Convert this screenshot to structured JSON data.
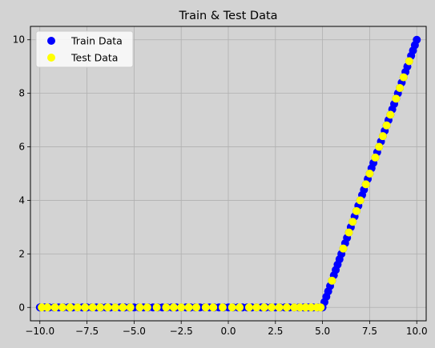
{
  "chart_data": {
    "type": "scatter",
    "title": "Train & Test Data",
    "xlabel": "",
    "ylabel": "",
    "xlim": [
      -10.5,
      10.5
    ],
    "ylim": [
      -0.5,
      10.5
    ],
    "xticks": [
      -10.0,
      -7.5,
      -5.0,
      -2.5,
      0.0,
      2.5,
      5.0,
      7.5,
      10.0
    ],
    "xtick_labels": [
      "−10.0",
      "−7.5",
      "−5.0",
      "−2.5",
      "0.0",
      "2.5",
      "5.0",
      "7.5",
      "10.0"
    ],
    "yticks": [
      0,
      2,
      4,
      6,
      8,
      10
    ],
    "ytick_labels": [
      "0",
      "2",
      "4",
      "6",
      "8",
      "10"
    ],
    "grid": true,
    "legend_position": "top-left",
    "background": "#d3d3d3",
    "series": [
      {
        "name": "Train Data",
        "color": "#0000ff",
        "x": [
          -10.0,
          -9.75,
          -9.5,
          -9.25,
          -9.0,
          -8.75,
          -8.5,
          -8.25,
          -8.0,
          -7.75,
          -7.5,
          -7.25,
          -7.0,
          -6.75,
          -6.5,
          -6.25,
          -6.0,
          -5.75,
          -5.5,
          -5.25,
          -5.0,
          -4.75,
          -4.5,
          -4.25,
          -4.0,
          -3.75,
          -3.5,
          -3.25,
          -3.0,
          -2.75,
          -2.5,
          -2.25,
          -2.0,
          -1.75,
          -1.5,
          -1.25,
          -1.0,
          -0.75,
          -0.5,
          -0.25,
          0.0,
          0.25,
          0.5,
          0.75,
          1.0,
          1.25,
          1.5,
          1.75,
          2.0,
          2.25,
          2.5,
          2.75,
          3.0,
          3.25,
          3.5,
          3.75,
          4.0,
          4.25,
          4.5,
          4.75,
          5.0,
          5.1,
          5.2,
          5.3,
          5.4,
          5.5,
          5.6,
          5.7,
          5.8,
          5.9,
          6.0,
          6.1,
          6.2,
          6.3,
          6.4,
          6.5,
          6.6,
          6.7,
          6.8,
          6.9,
          7.0,
          7.1,
          7.2,
          7.3,
          7.4,
          7.5,
          7.6,
          7.7,
          7.8,
          7.9,
          8.0,
          8.1,
          8.2,
          8.3,
          8.4,
          8.5,
          8.6,
          8.7,
          8.8,
          8.9,
          9.0,
          9.1,
          9.2,
          9.3,
          9.4,
          9.5,
          9.6,
          9.7,
          9.8,
          9.9,
          10.0
        ],
        "y": [
          0,
          0,
          0,
          0,
          0,
          0,
          0,
          0,
          0,
          0,
          0,
          0,
          0,
          0,
          0,
          0,
          0,
          0,
          0,
          0,
          0,
          0,
          0,
          0,
          0,
          0,
          0,
          0,
          0,
          0,
          0,
          0,
          0,
          0,
          0,
          0,
          0,
          0,
          0,
          0,
          0,
          0,
          0,
          0,
          0,
          0,
          0,
          0,
          0,
          0,
          0,
          0,
          0,
          0,
          0,
          0,
          0,
          0,
          0,
          0,
          0.0,
          0.2,
          0.4,
          0.6,
          0.8,
          1.0,
          1.2,
          1.4,
          1.6,
          1.8,
          2.0,
          2.2,
          2.4,
          2.6,
          2.8,
          3.0,
          3.2,
          3.4,
          3.6,
          3.8,
          4.0,
          4.2,
          4.4,
          4.6,
          4.8,
          5.0,
          5.2,
          5.4,
          5.6,
          5.8,
          6.0,
          6.2,
          6.4,
          6.6,
          6.8,
          7.0,
          7.2,
          7.4,
          7.6,
          7.8,
          8.0,
          8.2,
          8.4,
          8.6,
          8.8,
          9.0,
          9.2,
          9.4,
          9.6,
          9.8,
          10.0
        ]
      },
      {
        "name": "Test Data",
        "color": "#ffff00",
        "x": [
          -9.9,
          -9.6,
          -9.2,
          -8.8,
          -8.4,
          -8.0,
          -7.6,
          -7.2,
          -6.8,
          -6.4,
          -6.0,
          -5.6,
          -5.2,
          -4.7,
          -4.3,
          -3.8,
          -3.3,
          -2.9,
          -2.5,
          -2.1,
          -1.7,
          -1.2,
          -0.8,
          -0.3,
          0.2,
          0.6,
          1.1,
          1.5,
          1.9,
          2.3,
          2.7,
          3.1,
          3.5,
          3.8,
          4.1,
          4.4,
          4.7,
          4.9,
          5.5,
          6.1,
          6.4,
          6.6,
          6.8,
          7.0,
          7.3,
          7.5,
          7.8,
          8.0,
          8.2,
          8.4,
          8.6,
          8.9,
          9.1,
          9.3,
          9.6
        ],
        "y": [
          0,
          0,
          0,
          0,
          0,
          0,
          0,
          0,
          0,
          0,
          0,
          0,
          0,
          0,
          0,
          0,
          0,
          0,
          0,
          0,
          0,
          0,
          0,
          0,
          0,
          0,
          0,
          0,
          0,
          0,
          0,
          0,
          0,
          0,
          0,
          0,
          0,
          0,
          1.0,
          2.2,
          2.8,
          3.2,
          3.6,
          4.0,
          4.6,
          5.0,
          5.6,
          6.0,
          6.4,
          6.8,
          7.2,
          7.8,
          8.2,
          8.6,
          9.2
        ]
      }
    ]
  }
}
